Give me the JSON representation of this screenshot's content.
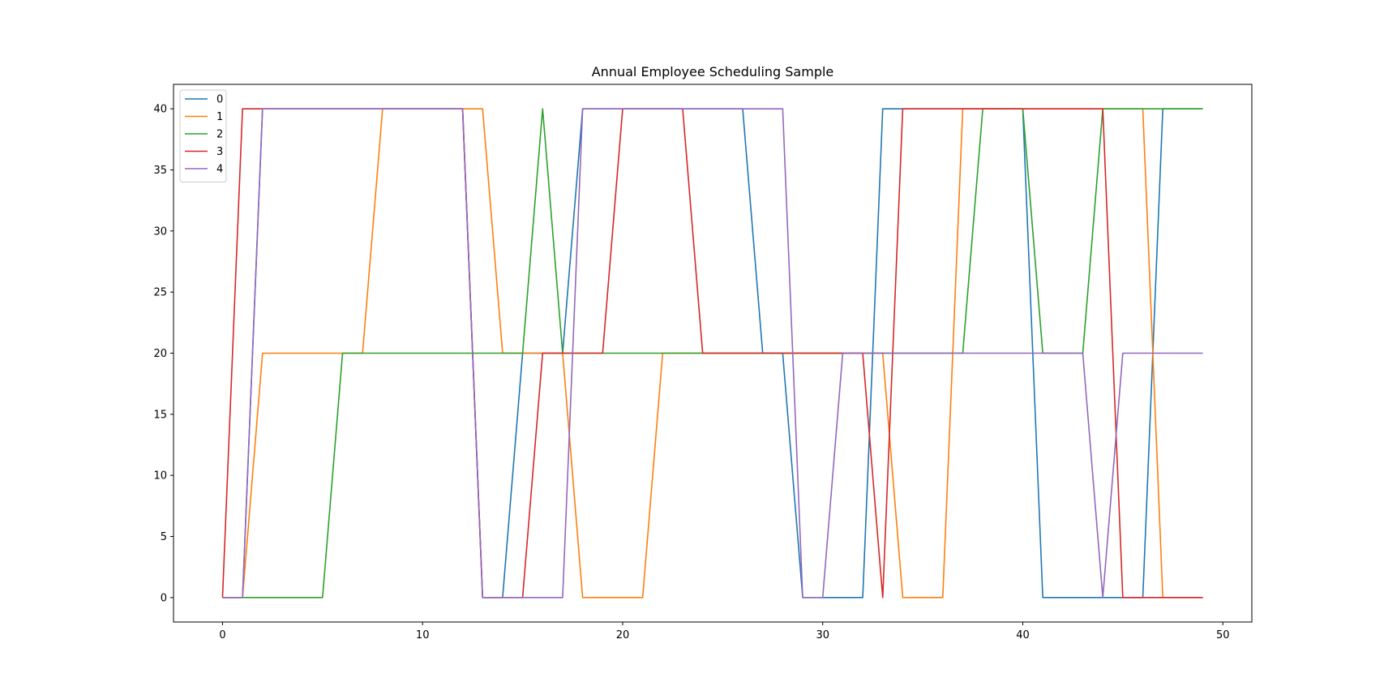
{
  "chart_data": {
    "type": "line",
    "title": "Annual Employee Scheduling Sample",
    "xlabel": "",
    "ylabel": "",
    "xlim": [
      -2.45,
      51.45
    ],
    "ylim": [
      -2,
      42
    ],
    "xticks": [
      0,
      10,
      20,
      30,
      40,
      50
    ],
    "yticks": [
      0,
      5,
      10,
      15,
      20,
      25,
      30,
      35,
      40
    ],
    "grid": false,
    "legend": "top-left",
    "x": [
      0,
      1,
      2,
      3,
      4,
      5,
      6,
      7,
      8,
      9,
      10,
      11,
      12,
      13,
      14,
      15,
      16,
      17,
      18,
      19,
      20,
      21,
      22,
      23,
      24,
      25,
      26,
      27,
      28,
      29,
      30,
      31,
      32,
      33,
      34,
      35,
      36,
      37,
      38,
      39,
      40,
      41,
      42,
      43,
      44,
      45,
      46,
      47,
      48,
      49
    ],
    "series": [
      {
        "name": "0",
        "color": "#1f77b4",
        "values": [
          0,
          0,
          40,
          40,
          40,
          40,
          40,
          40,
          40,
          40,
          40,
          40,
          40,
          0,
          0,
          20,
          20,
          20,
          40,
          40,
          40,
          40,
          40,
          40,
          40,
          40,
          40,
          20,
          20,
          0,
          0,
          0,
          0,
          40,
          40,
          40,
          40,
          40,
          40,
          40,
          40,
          0,
          0,
          0,
          0,
          0,
          0,
          40,
          40,
          40
        ]
      },
      {
        "name": "1",
        "color": "#ff7f0e",
        "values": [
          0,
          0,
          20,
          20,
          20,
          20,
          20,
          20,
          40,
          40,
          40,
          40,
          40,
          40,
          20,
          20,
          20,
          20,
          0,
          0,
          0,
          0,
          20,
          20,
          20,
          20,
          20,
          20,
          20,
          20,
          20,
          20,
          20,
          20,
          0,
          0,
          0,
          40,
          40,
          40,
          40,
          40,
          40,
          40,
          40,
          40,
          40,
          0,
          0,
          0
        ]
      },
      {
        "name": "2",
        "color": "#2ca02c",
        "values": [
          0,
          0,
          0,
          0,
          0,
          0,
          20,
          20,
          20,
          20,
          20,
          20,
          20,
          20,
          20,
          20,
          40,
          20,
          20,
          20,
          20,
          20,
          20,
          20,
          20,
          20,
          20,
          20,
          20,
          20,
          20,
          20,
          20,
          20,
          20,
          20,
          20,
          20,
          40,
          40,
          40,
          20,
          20,
          20,
          40,
          40,
          40,
          40,
          40,
          40
        ]
      },
      {
        "name": "3",
        "color": "#d62728",
        "values": [
          0,
          40,
          40,
          40,
          40,
          40,
          40,
          40,
          40,
          40,
          40,
          40,
          40,
          0,
          0,
          0,
          20,
          20,
          20,
          20,
          40,
          40,
          40,
          40,
          20,
          20,
          20,
          20,
          20,
          20,
          20,
          20,
          20,
          0,
          40,
          40,
          40,
          40,
          40,
          40,
          40,
          40,
          40,
          40,
          40,
          0,
          0,
          0,
          0,
          0
        ]
      },
      {
        "name": "4",
        "color": "#9467bd",
        "values": [
          0,
          0,
          40,
          40,
          40,
          40,
          40,
          40,
          40,
          40,
          40,
          40,
          40,
          0,
          0,
          0,
          0,
          0,
          40,
          40,
          40,
          40,
          40,
          40,
          40,
          40,
          40,
          40,
          40,
          0,
          0,
          20,
          20,
          20,
          20,
          20,
          20,
          20,
          20,
          20,
          20,
          20,
          20,
          20,
          0,
          20,
          20,
          20,
          20,
          20
        ]
      }
    ]
  }
}
